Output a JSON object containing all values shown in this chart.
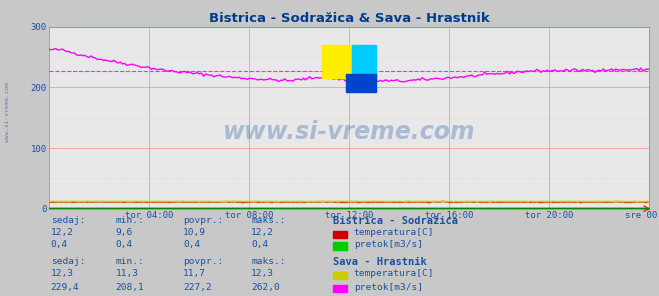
{
  "title": "Bistrica - Sodražica & Sava - Hrastnik",
  "title_color": "#003a8c",
  "bg_color": "#c8c8c8",
  "plot_bg_color": "#e8e8e8",
  "grid_color": "#ff8888",
  "grid_color2": "#ffbbbb",
  "xlabel_color": "#1a50a0",
  "ylabel_color": "#1a50a0",
  "watermark": "www.si-vreme.com",
  "watermark_color": "#1a50a0",
  "xlim": [
    0,
    288
  ],
  "ylim": [
    0,
    300
  ],
  "yticks": [
    0,
    100,
    200,
    300
  ],
  "xtick_labels": [
    "tor 04:00",
    "tor 08:00",
    "tor 12:00",
    "tor 16:00",
    "tor 20:00",
    "sre 00:00"
  ],
  "xtick_positions": [
    48,
    96,
    144,
    192,
    240,
    288
  ],
  "line_bistrica_temp_color": "#cc0000",
  "line_bistrica_pretok_color": "#008800",
  "line_sava_temp_color": "#cccc00",
  "line_sava_pretok_color": "#ff00ff",
  "line_avg_color": "#ff00ff",
  "legend_colors_temp1": "#cc0000",
  "legend_colors_pretok1": "#00cc00",
  "legend_colors_temp2": "#cccc00",
  "legend_colors_pretok2": "#ff00ff",
  "table_label_color": "#1a50a0",
  "table_value_color": "#1a50a0",
  "bistrica_sedaj": "12,2",
  "bistrica_min": "9,6",
  "bistrica_povpr": "10,9",
  "bistrica_maks": "12,2",
  "bistrica_pretok_sedaj": "0,4",
  "bistrica_pretok_min": "0,4",
  "bistrica_pretok_povpr": "0,4",
  "bistrica_pretok_maks": "0,4",
  "sava_sedaj": "12,3",
  "sava_min": "11,3",
  "sava_povpr": "11,7",
  "sava_maks": "12,3",
  "sava_pretok_sedaj": "229,4",
  "sava_pretok_min": "208,1",
  "sava_pretok_povpr": "227,2",
  "sava_pretok_maks": "262,0",
  "sava_pretok_avg_value": 227.2
}
